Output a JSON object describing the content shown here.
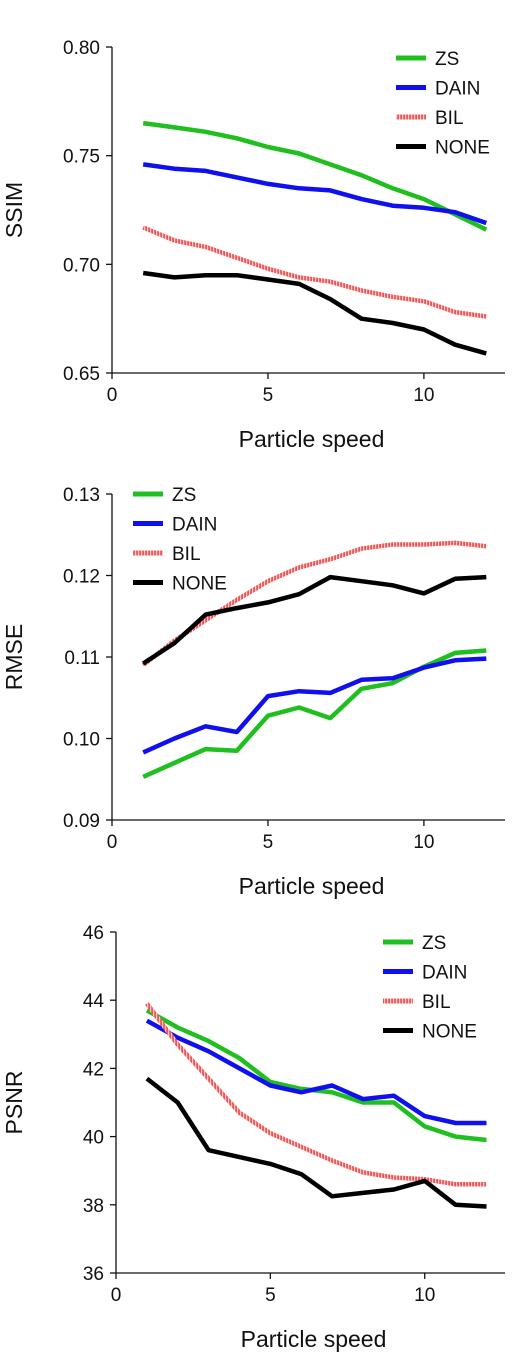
{
  "chart_data": [
    {
      "type": "line",
      "xlabel": "Particle speed",
      "ylabel": "SSIM",
      "xlim": [
        0,
        12.6
      ],
      "ylim": [
        0.65,
        0.8
      ],
      "xticks": [
        0,
        5,
        10
      ],
      "yticks": [
        "0.65",
        "0.70",
        "0.75",
        "0.80"
      ],
      "legend_position": "top-right",
      "x": [
        1,
        2,
        3,
        4,
        5,
        6,
        7,
        8,
        9,
        10,
        11,
        12
      ],
      "series": [
        {
          "name": "ZS",
          "color": "#1fbf1f",
          "style": "solid",
          "values": [
            0.765,
            0.763,
            0.761,
            0.758,
            0.754,
            0.751,
            0.746,
            0.741,
            0.735,
            0.73,
            0.723,
            0.716
          ]
        },
        {
          "name": "DAIN",
          "color": "#1010ee",
          "style": "solid",
          "values": [
            0.746,
            0.744,
            0.743,
            0.74,
            0.737,
            0.735,
            0.734,
            0.73,
            0.727,
            0.726,
            0.724,
            0.719
          ]
        },
        {
          "name": "BIL",
          "color": "#ee5555",
          "style": "hatched",
          "values": [
            0.717,
            0.711,
            0.708,
            0.703,
            0.698,
            0.694,
            0.692,
            0.688,
            0.685,
            0.683,
            0.678,
            0.676
          ]
        },
        {
          "name": "NONE",
          "color": "#000000",
          "style": "solid",
          "values": [
            0.696,
            0.694,
            0.695,
            0.695,
            0.693,
            0.691,
            0.684,
            0.675,
            0.673,
            0.67,
            0.663,
            0.659
          ]
        }
      ]
    },
    {
      "type": "line",
      "xlabel": "Particle speed",
      "ylabel": "RMSE",
      "xlim": [
        0,
        12.6
      ],
      "ylim": [
        0.09,
        0.13
      ],
      "xticks": [
        0,
        5,
        10
      ],
      "yticks": [
        "0.09",
        "0.10",
        "0.11",
        "0.12",
        "0.13"
      ],
      "legend_position": "top-left",
      "x": [
        1,
        2,
        3,
        4,
        5,
        6,
        7,
        8,
        9,
        10,
        11,
        12
      ],
      "series": [
        {
          "name": "ZS",
          "color": "#1fbf1f",
          "style": "solid",
          "values": [
            0.0953,
            0.097,
            0.0987,
            0.0985,
            0.1028,
            0.1038,
            0.1025,
            0.1061,
            0.1068,
            0.1088,
            0.1105,
            0.1108
          ]
        },
        {
          "name": "DAIN",
          "color": "#1010ee",
          "style": "solid",
          "values": [
            0.0983,
            0.1,
            0.1015,
            0.1008,
            0.1052,
            0.1058,
            0.1056,
            0.1072,
            0.1074,
            0.1087,
            0.1096,
            0.1098
          ]
        },
        {
          "name": "BIL",
          "color": "#ee5555",
          "style": "hatched",
          "values": [
            0.109,
            0.112,
            0.1145,
            0.117,
            0.1193,
            0.121,
            0.122,
            0.1233,
            0.1238,
            0.1238,
            0.124,
            0.1236
          ]
        },
        {
          "name": "NONE",
          "color": "#000000",
          "style": "solid",
          "values": [
            0.1092,
            0.1117,
            0.1152,
            0.116,
            0.1167,
            0.1177,
            0.1198,
            0.1193,
            0.1188,
            0.1178,
            0.1196,
            0.1198
          ]
        }
      ]
    },
    {
      "type": "line",
      "xlabel": "Particle speed",
      "ylabel": "PSNR",
      "xlim": [
        0,
        12.6
      ],
      "ylim": [
        36,
        46
      ],
      "xticks": [
        0,
        5,
        10
      ],
      "yticks": [
        "36",
        "38",
        "40",
        "42",
        "44",
        "46"
      ],
      "legend_position": "top-right",
      "x": [
        1,
        2,
        3,
        4,
        5,
        6,
        7,
        8,
        9,
        10,
        11,
        12
      ],
      "series": [
        {
          "name": "ZS",
          "color": "#1fbf1f",
          "style": "solid",
          "values": [
            43.7,
            43.2,
            42.8,
            42.3,
            41.6,
            41.4,
            41.3,
            41.0,
            41.0,
            40.3,
            40.0,
            39.9
          ]
        },
        {
          "name": "DAIN",
          "color": "#1010ee",
          "style": "solid",
          "values": [
            43.4,
            42.9,
            42.5,
            42.0,
            41.5,
            41.3,
            41.5,
            41.1,
            41.2,
            40.6,
            40.4,
            40.4
          ]
        },
        {
          "name": "BIL",
          "color": "#ee5555",
          "style": "hatched",
          "values": [
            43.9,
            42.7,
            41.7,
            40.7,
            40.1,
            39.7,
            39.3,
            38.95,
            38.8,
            38.75,
            38.6,
            38.6
          ]
        },
        {
          "name": "NONE",
          "color": "#000000",
          "style": "solid",
          "values": [
            41.7,
            41.0,
            39.6,
            39.4,
            39.2,
            38.9,
            38.25,
            38.35,
            38.45,
            38.7,
            38.0,
            37.95
          ]
        }
      ]
    }
  ]
}
